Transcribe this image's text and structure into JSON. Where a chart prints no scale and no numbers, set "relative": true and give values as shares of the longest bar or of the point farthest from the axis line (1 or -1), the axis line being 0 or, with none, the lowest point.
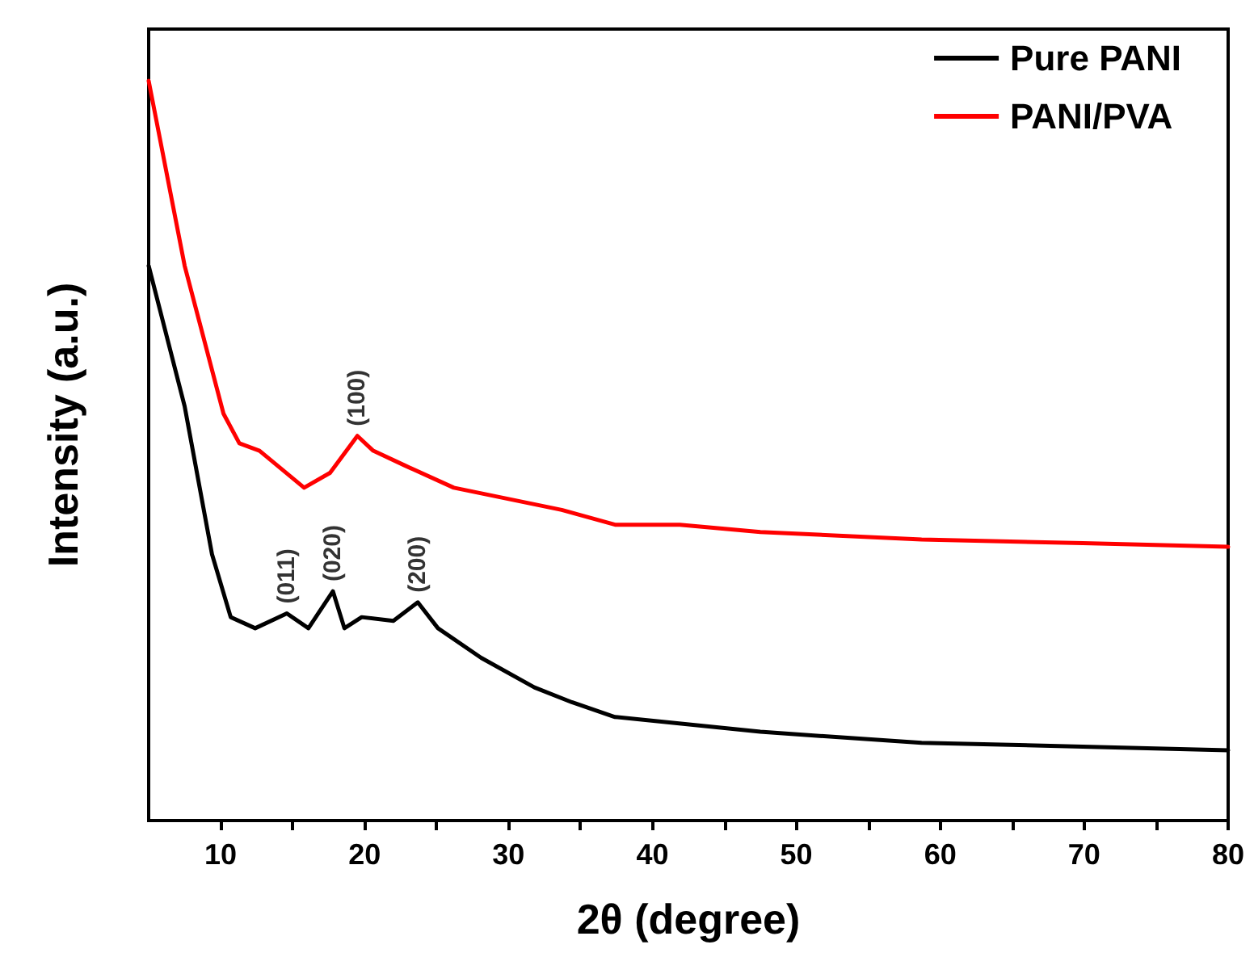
{
  "chart_data": {
    "type": "line",
    "xlabel": "2θ (degree)",
    "ylabel": "Intensity (a.u.)",
    "relative": true,
    "xlim": [
      5,
      80
    ],
    "xticks": [
      10,
      {
        "value": 15,
        "label": null
      },
      20,
      {
        "value": 25,
        "label": null
      },
      30,
      {
        "value": 35,
        "label": null
      },
      40,
      {
        "value": 45,
        "label": null
      },
      50,
      {
        "value": 55,
        "label": null
      },
      60,
      {
        "value": 65,
        "label": null
      },
      70,
      {
        "value": 75,
        "label": null
      },
      80
    ],
    "grid": false,
    "legend": "top right",
    "marker": "none",
    "line_style": "solid",
    "series": [
      {
        "name": "Pure PANI",
        "color": "#000000",
        "x": [
          5,
          7.5,
          9.4,
          10.7,
          12.4,
          14.6,
          16.1,
          17.8,
          18.6,
          19.8,
          22,
          23.7,
          25.1,
          28.1,
          31.8,
          34.4,
          37.4,
          47.5,
          58.7,
          69.9,
          80
        ],
        "values": [
          0.75,
          0.56,
          0.36,
          0.275,
          0.26,
          0.28,
          0.26,
          0.31,
          0.26,
          0.275,
          0.27,
          0.295,
          0.26,
          0.22,
          0.18,
          0.16,
          0.14,
          0.12,
          0.105,
          0.1,
          0.095
        ]
      },
      {
        "name": "PANI/PVA",
        "color": "#ff0000",
        "x": [
          5,
          7.5,
          10.2,
          11.3,
          12.7,
          15.8,
          17.6,
          19.5,
          20.6,
          22.8,
          26.2,
          33.7,
          37.4,
          41.9,
          47.5,
          58.7,
          69.9,
          80
        ],
        "values": [
          1.0,
          0.75,
          0.55,
          0.51,
          0.5,
          0.45,
          0.47,
          0.52,
          0.5,
          0.48,
          0.45,
          0.42,
          0.4,
          0.4,
          0.39,
          0.38,
          0.375,
          0.37
        ]
      }
    ],
    "annotations": [
      {
        "text": "(011)",
        "x": 14.6,
        "y": 0.28
      },
      {
        "text": "(020)",
        "x": 17.8,
        "y": 0.31
      },
      {
        "text": "(200)",
        "x": 23.7,
        "y": 0.295
      },
      {
        "text": "(100)",
        "x": 19.5,
        "y": 0.52
      }
    ]
  }
}
